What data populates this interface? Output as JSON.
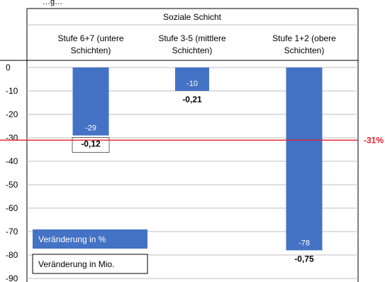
{
  "chart_data": {
    "type": "bar",
    "top_caption": "…g…",
    "category_group_label": "Soziale Schicht",
    "categories": [
      "Stufe 6+7 (untere Schichten)",
      "Stufe 3-5 (mittlere Schichten)",
      "Stufe 1+2 (obere Schichten)"
    ],
    "category_lines": [
      [
        "Stufe 6+7 (untere",
        "Schichten)"
      ],
      [
        "Stufe 3-5 (mittlere",
        "Schichten)"
      ],
      [
        "Stufe 1+2 (obere",
        "Schichten)"
      ]
    ],
    "series": [
      {
        "name": "Veränderung in %",
        "values": [
          -29,
          -10,
          -78
        ],
        "value_labels": [
          "-29",
          "-10",
          "-78"
        ]
      },
      {
        "name": "Veränderung in Mio.",
        "values": [
          -0.12,
          -0.21,
          -0.75
        ],
        "value_labels": [
          "-0,12",
          "-0,21",
          "-0,75"
        ]
      }
    ],
    "reference_line": {
      "value": -31,
      "label": "-31%",
      "color": "#e0202a"
    },
    "yticks": [
      0,
      -10,
      -20,
      -30,
      -40,
      -50,
      -60,
      -70,
      -80,
      -90
    ],
    "ylim": [
      -90,
      0
    ],
    "grid": true,
    "legend_position": "bottom-left",
    "colors": {
      "bar": "#4472c4",
      "grid": "#bfbfbf",
      "border": "#000000",
      "reference": "#e0202a"
    }
  }
}
